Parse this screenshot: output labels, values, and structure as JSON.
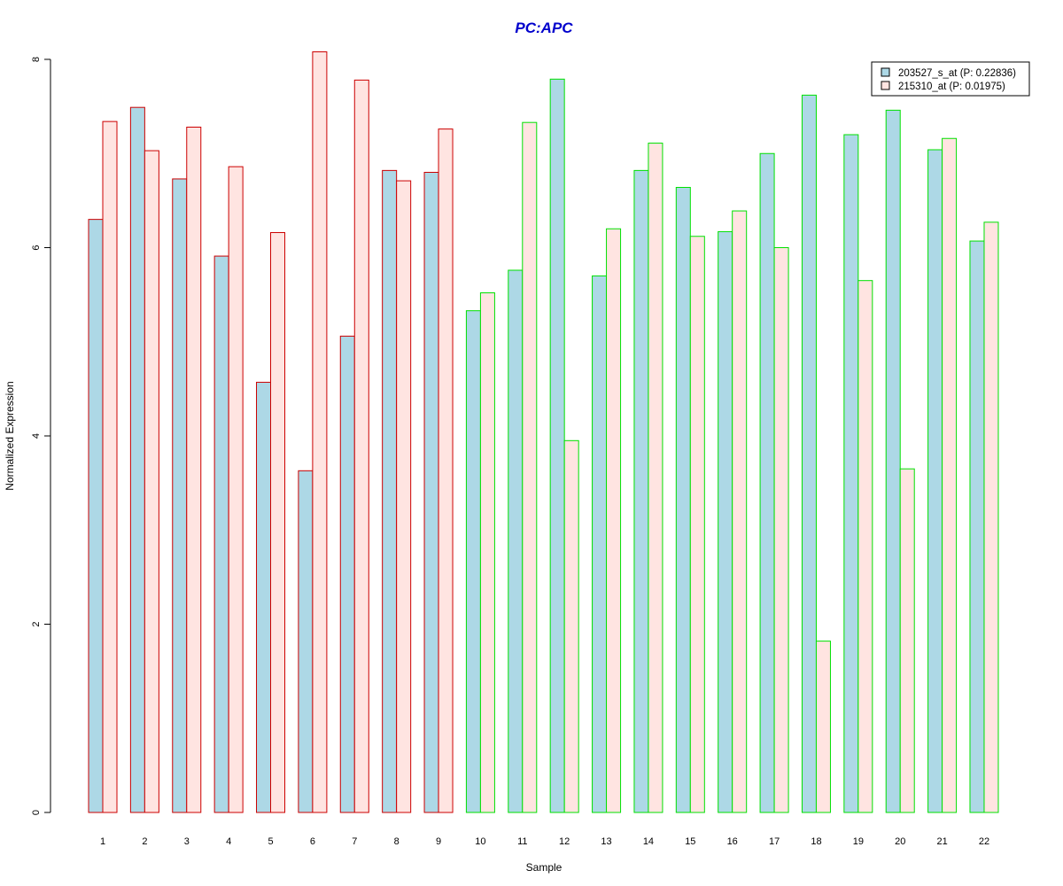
{
  "chart_data": {
    "type": "bar",
    "title": "PC:APC",
    "xlabel": "Sample",
    "ylabel": "Normalized Expression",
    "ylim": [
      0,
      8
    ],
    "y_ticks": [
      "0",
      "2",
      "4",
      "6",
      "8"
    ],
    "categories": [
      "1",
      "2",
      "3",
      "4",
      "5",
      "6",
      "7",
      "8",
      "9",
      "10",
      "11",
      "12",
      "13",
      "14",
      "15",
      "16",
      "17",
      "18",
      "19",
      "20",
      "21",
      "22"
    ],
    "series": [
      {
        "name": "203527_s_at (P: 0.22836)",
        "fill": "#add8e6",
        "values": [
          6.3,
          7.49,
          6.73,
          5.91,
          4.57,
          3.63,
          5.06,
          6.82,
          6.8,
          5.33,
          5.76,
          7.79,
          5.7,
          6.82,
          6.64,
          6.17,
          7.0,
          7.62,
          7.2,
          7.46,
          7.04,
          6.07
        ]
      },
      {
        "name": "215310_at (P: 0.01975)",
        "fill": "#ffe4e1",
        "values": [
          7.34,
          7.03,
          7.28,
          6.86,
          6.16,
          8.08,
          7.78,
          6.71,
          7.26,
          5.52,
          7.33,
          3.95,
          6.2,
          7.11,
          6.12,
          6.39,
          6.0,
          1.82,
          5.65,
          3.65,
          7.16,
          6.27
        ]
      }
    ],
    "bar_outline_colors": [
      "#cc0000",
      "#cc0000",
      "#cc0000",
      "#cc0000",
      "#cc0000",
      "#cc0000",
      "#cc0000",
      "#cc0000",
      "#cc0000",
      "#00e000",
      "#00e000",
      "#00e000",
      "#00e000",
      "#00e000",
      "#00e000",
      "#00e000",
      "#00e000",
      "#00e000",
      "#00e000",
      "#00e000",
      "#00e000",
      "#00e000"
    ],
    "legend_position": "top-right",
    "title_color": "#0000cc",
    "grid": false
  }
}
